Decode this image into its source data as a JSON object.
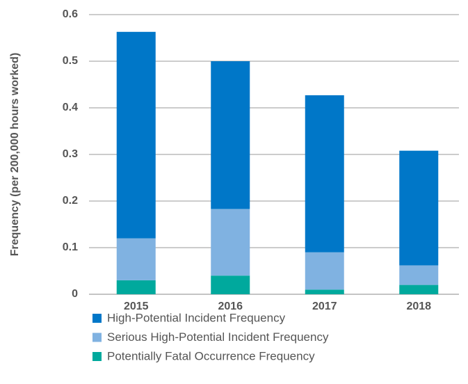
{
  "chart_data": {
    "type": "stacked_bar",
    "y_label": "Frequency (per 200,000 hours worked)",
    "categories": [
      "2015",
      "2016",
      "2017",
      "2018"
    ],
    "series": [
      {
        "name": "High-Potential Incident Frequency",
        "color": "#0077c8",
        "values": [
          0.443,
          0.317,
          0.337,
          0.246
        ]
      },
      {
        "name": "Serious High-Potential Incident Frequency",
        "color": "#80b2e1",
        "values": [
          0.09,
          0.143,
          0.08,
          0.042
        ]
      },
      {
        "name": "Potentially Fatal Occurrence Frequency",
        "color": "#00a99d",
        "values": [
          0.03,
          0.04,
          0.01,
          0.02
        ]
      }
    ],
    "ylim": [
      0,
      0.6
    ],
    "yticks": [
      0,
      0.1,
      0.2,
      0.3,
      0.4,
      0.5,
      0.6
    ],
    "grid": true
  }
}
